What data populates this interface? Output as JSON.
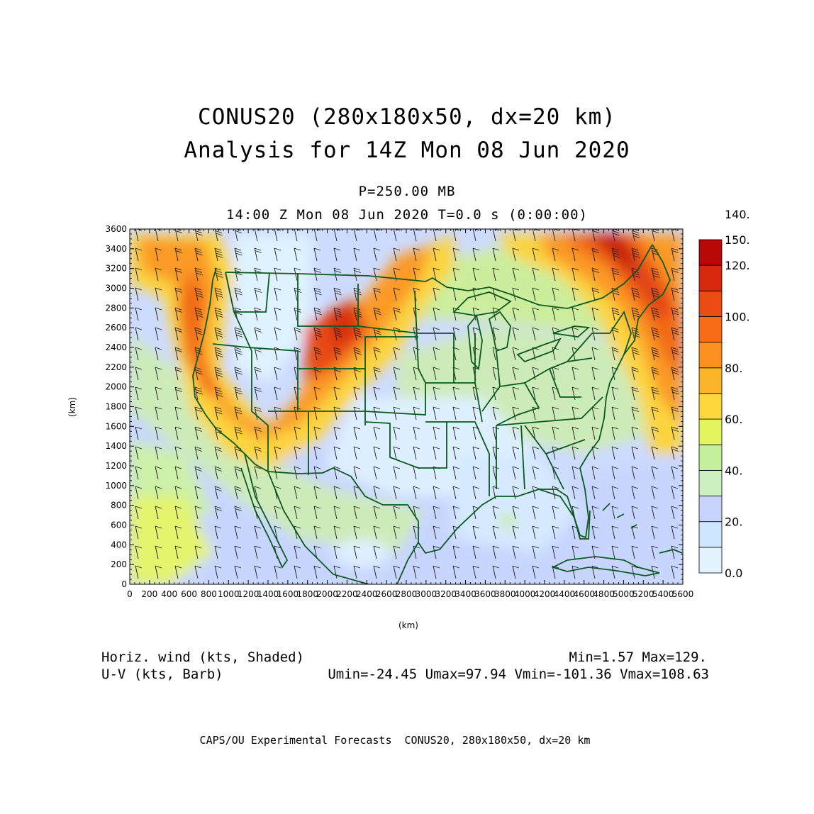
{
  "titles": {
    "line1": "CONUS20 (280x180x50, dx=20 km)",
    "line2": "Analysis for 14Z Mon 08 Jun 2020",
    "level": "P=250.00 MB",
    "time": "14:00 Z Mon 08 Jun 2020    T=0.0 s (0:00:00)"
  },
  "axes": {
    "xlabel": "(km)",
    "ylabel": "(km)",
    "x_ticks": [
      "0",
      "200",
      "400",
      "600",
      "800",
      "1000",
      "1200",
      "1400",
      "1600",
      "1800",
      "2000",
      "2200",
      "2400",
      "2600",
      "2800",
      "3000",
      "3200",
      "3400",
      "3600",
      "3800",
      "4000",
      "4200",
      "4400",
      "4600",
      "4800",
      "5000",
      "5200",
      "5400",
      "5600"
    ],
    "y_ticks": [
      "0",
      "200",
      "400",
      "600",
      "800",
      "1000",
      "1200",
      "1400",
      "1600",
      "1800",
      "2000",
      "2200",
      "2400",
      "2600",
      "2800",
      "3000",
      "3200",
      "3400",
      "3600"
    ],
    "xlim": [
      0,
      5600
    ],
    "ylim": [
      0,
      3600
    ]
  },
  "colorbar": {
    "labels": [
      "0.0",
      "20.",
      "40.",
      "60.",
      "80.",
      "100.",
      "120.",
      "140.",
      "150."
    ],
    "colors": [
      "#e4f4ff",
      "#cfe6ff",
      "#c8d4ff",
      "#ccf0c0",
      "#c4f09c",
      "#e4f45c",
      "#fcd83c",
      "#fcb428",
      "#fc9020",
      "#f86c18",
      "#ec4c14",
      "#d82810",
      "#b80808"
    ]
  },
  "info": {
    "field_label": "Horiz. wind (kts, Shaded)",
    "minmax": "Min=1.57 Max=129.",
    "barb_label": "U-V (kts, Barb)",
    "uv_stats": "Umin=-24.45 Umax=97.94 Vmin=-101.36 Vmax=108.63"
  },
  "footer": "CAPS/OU Experimental Forecasts  CONUS20, 280x180x50, dx=20 km"
}
